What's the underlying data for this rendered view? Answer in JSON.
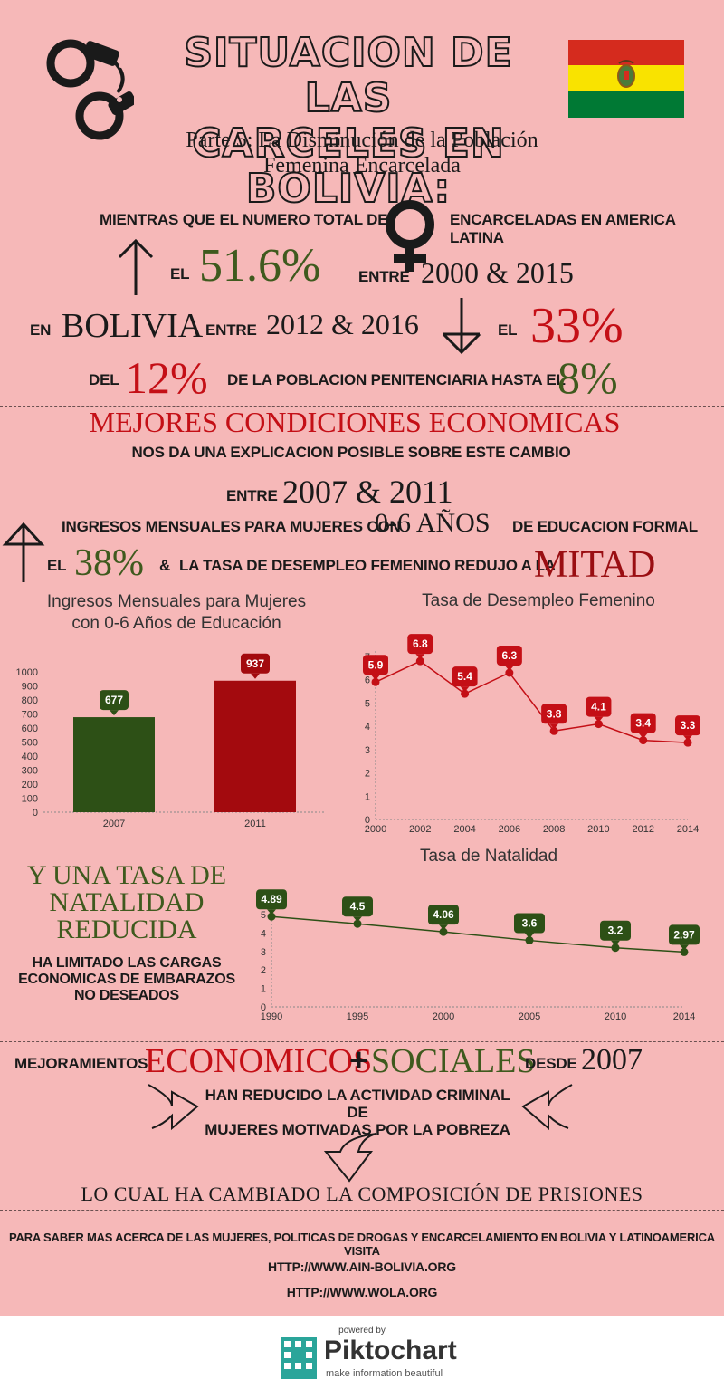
{
  "header": {
    "title_line1": "SITUACION DE LAS",
    "title_line2": "CARCELES EN BOLIVIA:",
    "subtitle_line1": "Parte 5: La Disminución de la Población",
    "subtitle_line2": "Femenina Encarcelada",
    "flag_colors": [
      "#d52b1e",
      "#f9e300",
      "#007934"
    ]
  },
  "section1": {
    "line1_pre": "MIENTRAS QUE EL NUMERO TOTAL DE",
    "line1_post": "ENCARCELADAS EN AMERICA LATINA",
    "el": "EL",
    "pct_latam": "51.6%",
    "entre": "ENTRE",
    "years_latam": "2000 & 2015",
    "en": "EN",
    "bolivia": "BOLIVIA",
    "entre2": "ENTRE",
    "years_bolivia": "2012 & 2016",
    "el2": "EL",
    "pct_bolivia": "33%",
    "del": "DEL",
    "pct_from": "12%",
    "mid": "DE LA POBLACION PENITENCIARIA HASTA EL",
    "pct_to": "8%"
  },
  "section2": {
    "heading": "MEJORES CONDICIONES ECONOMICAS",
    "sub": "NOS DA UNA EXPLICACION POSIBLE SOBRE ESTE CAMBIO",
    "entre": "ENTRE",
    "years": "2007 & 2011",
    "income_pre": "INGRESOS MENSUALES PARA MUJERES CON",
    "income_years": "0-6 AÑOS",
    "income_post": "DE EDUCACION FORMAL",
    "el": "EL",
    "pct": "38%",
    "amp": "&",
    "unemp": "LA TASA DE DESEMPLEO FEMENINO REDUJO A LA",
    "mitad": "MITAD"
  },
  "chart_data": [
    {
      "type": "bar",
      "title": "Ingresos Mensuales para Mujeres con 0-6 Años de Educación",
      "title_line1": "Ingresos Mensuales para Mujeres",
      "title_line2": "con 0-6 Años de Educación",
      "categories": [
        "2007",
        "2011"
      ],
      "values": [
        677,
        937
      ],
      "colors": [
        "#2d5016",
        "#a30a0e"
      ],
      "ylim": [
        0,
        1000
      ],
      "yticks": [
        0,
        100,
        200,
        300,
        400,
        500,
        600,
        700,
        800,
        900,
        1000
      ]
    },
    {
      "type": "line",
      "title": "Tasa de Desempleo Femenino",
      "x": [
        2000,
        2002,
        2004,
        2006,
        2008,
        2010,
        2012,
        2014
      ],
      "values": [
        5.9,
        6.8,
        5.4,
        6.3,
        3.8,
        4.1,
        3.4,
        3.3
      ],
      "xticks": [
        2000,
        2002,
        2004,
        2006,
        2008,
        2010,
        2012,
        2014
      ],
      "yticks": [
        0,
        1,
        2,
        3,
        4,
        5,
        6,
        7
      ],
      "ylim": [
        0,
        7
      ],
      "color": "#c40f16"
    },
    {
      "type": "line",
      "title": "Tasa de Natalidad",
      "x": [
        1990,
        1995,
        2000,
        2005,
        2010,
        2014
      ],
      "values": [
        4.89,
        4.5,
        4.06,
        3.6,
        3.2,
        2.97
      ],
      "labels": [
        "4.89",
        "4.5",
        "4.06",
        "3.6",
        "3.2",
        "2.97"
      ],
      "xticks": [
        1990,
        1995,
        2000,
        2005,
        2010,
        2014
      ],
      "yticks": [
        0,
        1,
        2,
        3,
        4,
        5
      ],
      "ylim": [
        0,
        5
      ],
      "color": "#2d5016"
    }
  ],
  "section3": {
    "heading_line1": "Y UNA TASA DE",
    "heading_line2": "NATALIDAD",
    "heading_line3": "REDUCIDA",
    "sub_line1": "HA LIMITADO LAS CARGAS",
    "sub_line2": "ECONOMICAS DE EMBARAZOS",
    "sub_line3": "NO DESEADOS"
  },
  "section4": {
    "mejoramientos": "MEJORAMIENTOS",
    "economicos": "ECONOMICOS",
    "plus": "+",
    "sociales": "SOCIALES",
    "desde": "DESDE",
    "year": "2007",
    "reduced_line1": "HAN REDUCIDO LA ACTIVIDAD CRIMINAL DE",
    "reduced_line2": "MUJERES MOTIVADAS POR LA POBREZA",
    "conclusion": "LO CUAL HA CAMBIADO LA COMPOSICIÓN DE PRISIONES"
  },
  "links": {
    "intro": "PARA SABER MAS ACERCA DE LAS MUJERES, POLITICAS DE DROGAS Y ENCARCELAMIENTO EN BOLIVIA Y LATINOAMERICA VISITA",
    "url1": "HTTP://WWW.AIN-BOLIVIA.ORG",
    "url2": "HTTP://WWW.WOLA.ORG"
  },
  "footer": {
    "powered_by": "powered by",
    "brand": "Piktochart",
    "tagline": "make information beautiful"
  }
}
